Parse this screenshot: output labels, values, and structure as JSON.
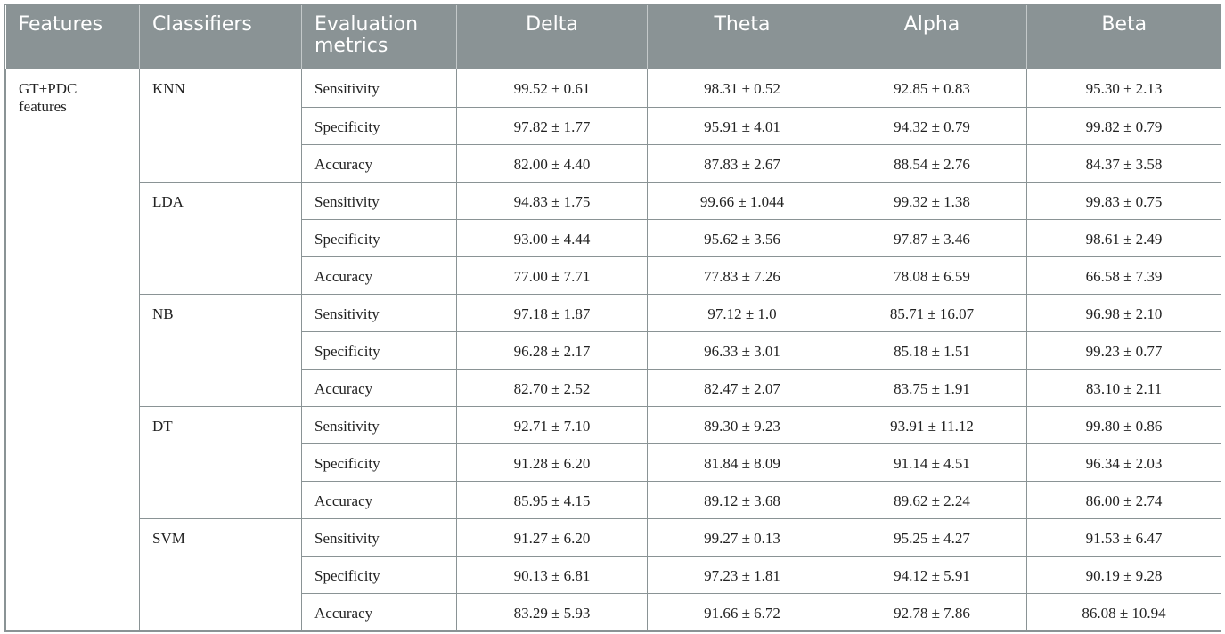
{
  "headers": [
    "Features",
    "Classifiers",
    "Evaluation metrics",
    "Delta",
    "Theta",
    "Alpha",
    "Beta"
  ],
  "feature_label": "GT+PDC features",
  "groups": [
    {
      "classifier": "KNN",
      "rows": [
        {
          "metric": "Sensitivity",
          "values": [
            "99.52 ± 0.61",
            "98.31 ± 0.52",
            "92.85 ± 0.83",
            "95.30 ± 2.13"
          ]
        },
        {
          "metric": "Specificity",
          "values": [
            "97.82 ± 1.77",
            "95.91 ± 4.01",
            "94.32 ± 0.79",
            "99.82 ± 0.79"
          ]
        },
        {
          "metric": "Accuracy",
          "values": [
            "82.00 ± 4.40",
            "87.83 ± 2.67",
            "88.54 ± 2.76",
            "84.37 ± 3.58"
          ]
        }
      ]
    },
    {
      "classifier": "LDA",
      "rows": [
        {
          "metric": "Sensitivity",
          "values": [
            "94.83 ± 1.75",
            "99.66 ± 1.044",
            "99.32 ± 1.38",
            "99.83 ± 0.75"
          ]
        },
        {
          "metric": "Specificity",
          "values": [
            "93.00 ± 4.44",
            "95.62 ± 3.56",
            "97.87 ± 3.46",
            "98.61 ± 2.49"
          ]
        },
        {
          "metric": "Accuracy",
          "values": [
            "77.00 ± 7.71",
            "77.83 ± 7.26",
            "78.08 ± 6.59",
            "66.58 ± 7.39"
          ]
        }
      ]
    },
    {
      "classifier": "NB",
      "rows": [
        {
          "metric": "Sensitivity",
          "values": [
            "97.18 ± 1.87",
            "97.12 ± 1.0",
            "85.71 ± 16.07",
            "96.98 ± 2.10"
          ]
        },
        {
          "metric": "Specificity",
          "values": [
            "96.28 ± 2.17",
            "96.33 ± 3.01",
            "85.18 ± 1.51",
            "99.23 ± 0.77"
          ]
        },
        {
          "metric": "Accuracy",
          "values": [
            "82.70 ± 2.52",
            "82.47 ± 2.07",
            "83.75 ± 1.91",
            "83.10 ± 2.11"
          ]
        }
      ]
    },
    {
      "classifier": "DT",
      "rows": [
        {
          "metric": "Sensitivity",
          "values": [
            "92.71 ± 7.10",
            "89.30 ± 9.23",
            "93.91 ± 11.12",
            "99.80 ± 0.86"
          ]
        },
        {
          "metric": "Specificity",
          "values": [
            "91.28 ± 6.20",
            "81.84 ± 8.09",
            "91.14 ± 4.51",
            "96.34 ± 2.03"
          ]
        },
        {
          "metric": "Accuracy",
          "values": [
            "85.95 ± 4.15",
            "89.12 ± 3.68",
            "89.62 ± 2.24",
            "86.00 ± 2.74"
          ]
        }
      ]
    },
    {
      "classifier": "SVM",
      "rows": [
        {
          "metric": "Sensitivity",
          "values": [
            "91.27 ± 6.20",
            "99.27 ± 0.13",
            "95.25 ± 4.27",
            "91.53 ± 6.47"
          ]
        },
        {
          "metric": "Specificity",
          "values": [
            "90.13 ± 6.81",
            "97.23 ± 1.81",
            "94.12 ± 5.91",
            "90.19 ± 9.28"
          ]
        },
        {
          "metric": "Accuracy",
          "values": [
            "83.29 ± 5.93",
            "91.66 ± 6.72",
            "92.78 ± 7.86",
            "86.08 ± 10.94"
          ]
        }
      ]
    }
  ]
}
